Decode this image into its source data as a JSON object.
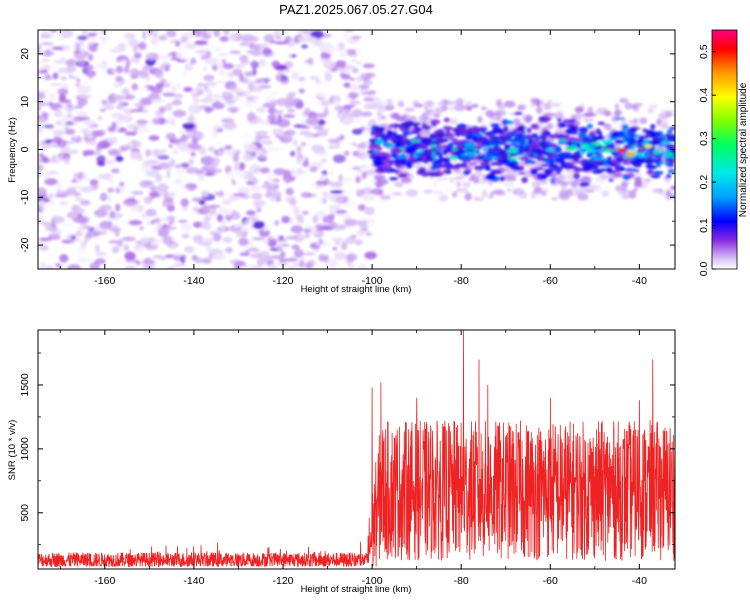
{
  "title": "PAZ1.2025.067.05.27.G04",
  "chart_data": [
    {
      "type": "heatmap",
      "name": "spectrogram",
      "xlabel": "Height of straight line (km)",
      "ylabel": "Frequency (Hz)",
      "xlim": [
        -175,
        -32
      ],
      "ylim": [
        -25,
        25
      ],
      "x_ticks": [
        -160,
        -140,
        -120,
        -100,
        -80,
        -60,
        -40
      ],
      "y_ticks": [
        -20,
        -10,
        0,
        10,
        20
      ],
      "colorbar": {
        "label": "Normalized spectral amplitude",
        "range": [
          0,
          0.55
        ],
        "ticks": [
          0.0,
          0.1,
          0.2,
          0.3,
          0.4,
          0.5
        ],
        "colormap": [
          "#ffffff",
          "#c9a8f0",
          "#8a2be2",
          "#3a1ad8",
          "#0000ff",
          "#00a0ff",
          "#00e8e8",
          "#00ff60",
          "#80ff00",
          "#ffff00",
          "#ff9900",
          "#ff0000",
          "#ff0080"
        ]
      },
      "features": {
        "noise_region_x": [
          -175,
          -100
        ],
        "noise_freq_span": [
          -25,
          25
        ],
        "noise_amplitude": 0.07,
        "signal_region_x": [
          -100,
          -32
        ],
        "signal_center_freq": 0,
        "signal_halfwidth_hz": 4,
        "signal_peak_amplitude": 0.5,
        "signal_peak_x": -44
      }
    },
    {
      "type": "line",
      "name": "snr",
      "xlabel": "Height of straight line (km)",
      "ylabel": "SNR (10 * v/v)",
      "xlim": [
        -175,
        -32
      ],
      "ylim": [
        60,
        1930
      ],
      "x_ticks": [
        -160,
        -140,
        -120,
        -100,
        -80,
        -60,
        -40
      ],
      "y_ticks": [
        500,
        1000,
        1500
      ],
      "line_color": "#ee2222",
      "segments": [
        {
          "x_range": [
            -175,
            -101
          ],
          "baseline": 130,
          "spread": 120
        },
        {
          "x_range": [
            -101,
            -32
          ],
          "baseline": 620,
          "spread": 1100
        }
      ],
      "peaks": [
        {
          "x": -100,
          "y": 1480
        },
        {
          "x": -98,
          "y": 1520
        },
        {
          "x": -90,
          "y": 1400
        },
        {
          "x": -79.5,
          "y": 1930
        },
        {
          "x": -76,
          "y": 1700
        },
        {
          "x": -74,
          "y": 1500
        },
        {
          "x": -60,
          "y": 1400
        },
        {
          "x": -40,
          "y": 1380
        },
        {
          "x": -37,
          "y": 1700
        }
      ]
    }
  ]
}
